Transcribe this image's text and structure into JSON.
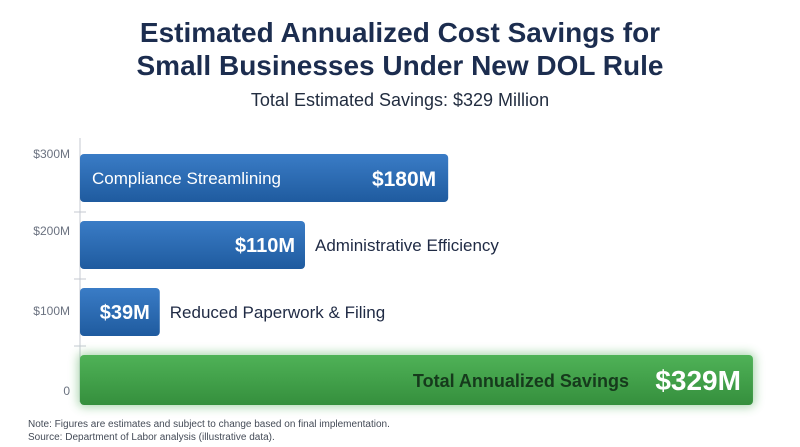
{
  "chart_data": {
    "type": "bar",
    "orientation": "horizontal",
    "title": "Estimated Annualized Cost Savings for\nSmall Businesses Under New DOL Rule",
    "subtitle": "Total Estimated Savings: $329 Million",
    "categories": [
      "Compliance Streamlining",
      "Administrative Efficiency",
      "Reduced Paperwork & Filing",
      "Total Annualized Savings"
    ],
    "values": [
      180,
      110,
      39,
      329
    ],
    "value_labels": [
      "$180M",
      "$110M",
      "$39M",
      "$329M"
    ],
    "yticks": [
      "$300M",
      "$200M",
      "$100M",
      "0"
    ],
    "xlim": [
      0,
      330
    ],
    "colors": [
      "#2e6bb3",
      "#2e6bb3",
      "#2e6bb3",
      "#3fa24a"
    ],
    "grid": false,
    "legend": "none"
  },
  "notes": {
    "line1": "Note: Figures are estimates and subject to change based on final implementation.",
    "line2": "Source: Department of Labor analysis (illustrative data)."
  }
}
